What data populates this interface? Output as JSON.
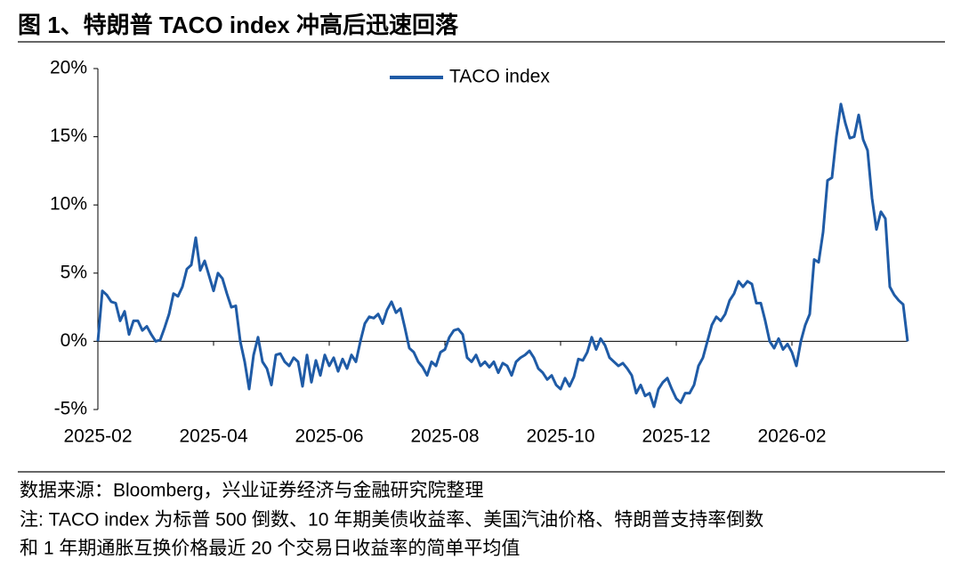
{
  "chart_data": {
    "type": "line",
    "title": "图 1、特朗普 TACO index 冲高后迅速回落",
    "source": "数据来源：Bloomberg，兴业证券经济与金融研究院整理",
    "note": [
      "注: TACO index 为标普 500 倒数、10 年期美债收益率、美国汽油价格、特朗普支持率倒数",
      "和 1 年期通胀互换价格最近 20 个交易日收益率的简单平均值"
    ],
    "xlim": [
      "2025-02",
      "2026-04"
    ],
    "xticks": [
      "2025-02",
      "2025-04",
      "2025-06",
      "2025-08",
      "2025-10",
      "2025-12",
      "2026-02"
    ],
    "ylim": [
      -5,
      20
    ],
    "yticks": [
      {
        "value": 20,
        "label": "20%"
      },
      {
        "value": 15,
        "label": "15%"
      },
      {
        "value": 10,
        "label": "10%"
      },
      {
        "value": 5,
        "label": "5%"
      },
      {
        "value": 0,
        "label": "0%"
      },
      {
        "value": -5,
        "label": "-5%"
      }
    ],
    "legend": "top-center",
    "series": [
      {
        "name": "TACO index",
        "color": "#1f5ba6",
        "values": [
          0,
          3.7,
          3.4,
          2.9,
          2.8,
          1.5,
          2.2,
          0.5,
          1.5,
          1.5,
          0.8,
          1.1,
          0.5,
          0,
          0.1,
          1.0,
          2.0,
          3.5,
          3.3,
          4.0,
          5.3,
          5.6,
          7.6,
          5.2,
          5.9,
          4.8,
          3.7,
          5.0,
          4.6,
          3.5,
          2.5,
          2.6,
          0,
          -1.5,
          -3.5,
          -1.0,
          0.3,
          -1.5,
          -2.0,
          -3.2,
          -1.0,
          -0.9,
          -1.5,
          -1.8,
          -1.2,
          -1.5,
          -3.3,
          -1.0,
          -3.0,
          -1.4,
          -2.5,
          -1.0,
          -1.8,
          -1.2,
          -2.2,
          -1.3,
          -2.0,
          -1.0,
          -1.5,
          0,
          1.3,
          1.8,
          1.7,
          2.0,
          1.3,
          2.3,
          2.9,
          2.1,
          2.4,
          1.0,
          -0.5,
          -0.8,
          -1.5,
          -1.9,
          -2.5,
          -1.5,
          -1.8,
          -0.8,
          -0.6,
          0.3,
          0.8,
          0.9,
          0.5,
          -1.2,
          -1.5,
          -1.0,
          -1.8,
          -1.5,
          -1.9,
          -1.5,
          -2.3,
          -1.6,
          -1.8,
          -2.5,
          -1.5,
          -1.2,
          -1.0,
          -0.7,
          -1.2,
          -2.0,
          -2.3,
          -2.8,
          -2.5,
          -3.2,
          -3.5,
          -2.7,
          -3.3,
          -2.6,
          -1.3,
          -1.4,
          -0.8,
          0.3,
          -0.6,
          0.2,
          -0.3,
          -1.2,
          -1.5,
          -1.8,
          -1.6,
          -2.0,
          -2.5,
          -3.8,
          -3.2,
          -4.0,
          -3.8,
          -4.8,
          -3.5,
          -3.0,
          -2.7,
          -3.5,
          -4.2,
          -4.5,
          -3.8,
          -3.8,
          -3.2,
          -1.8,
          -1.2,
          0,
          1.2,
          1.8,
          1.5,
          2.0,
          3.0,
          3.5,
          4.4,
          4.0,
          4.4,
          4.2,
          2.8,
          2.8,
          1.5,
          0,
          -0.5,
          0.2,
          -0.6,
          -0.2,
          -0.8,
          -1.8,
          0,
          1.2,
          2.0,
          6.0,
          5.8,
          8.0,
          11.8,
          12.0,
          15.0,
          17.4,
          16.0,
          14.9,
          15.0,
          16.6,
          14.8,
          14.0,
          10.5,
          8.2,
          9.5,
          9.0,
          4.0,
          3.4,
          3.0,
          2.7,
          0
        ]
      }
    ]
  }
}
